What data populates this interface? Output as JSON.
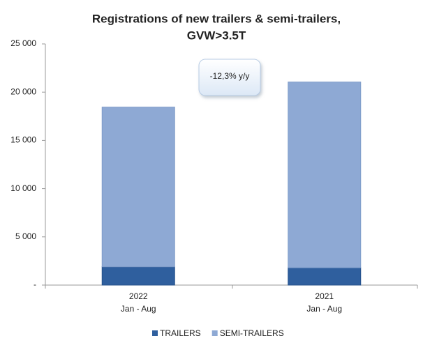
{
  "chart_data": {
    "type": "stacked-bar",
    "title": [
      "Registrations of new trailers & semi-trailers,",
      "GVW>3.5T"
    ],
    "annotation": "-12,3% y/y",
    "categories": [
      [
        "2022",
        "Jan - Aug"
      ],
      [
        "2021",
        "Jan - Aug"
      ]
    ],
    "series": [
      {
        "name": "TRAILERS",
        "color": "#2f5f9e",
        "values": [
          1900,
          1800
        ]
      },
      {
        "name": "SEMI-TRAILERS",
        "color": "#8ea9d4",
        "values": [
          16550,
          19250
        ]
      }
    ],
    "ylim": [
      0,
      25000
    ],
    "yticks": [
      {
        "value": 0,
        "label": "-"
      },
      {
        "value": 5000,
        "label": "5 000"
      },
      {
        "value": 10000,
        "label": "10 000"
      },
      {
        "value": 15000,
        "label": "15 000"
      },
      {
        "value": 20000,
        "label": "20 000"
      },
      {
        "value": 25000,
        "label": "25 000"
      }
    ],
    "legend": "bottom"
  }
}
